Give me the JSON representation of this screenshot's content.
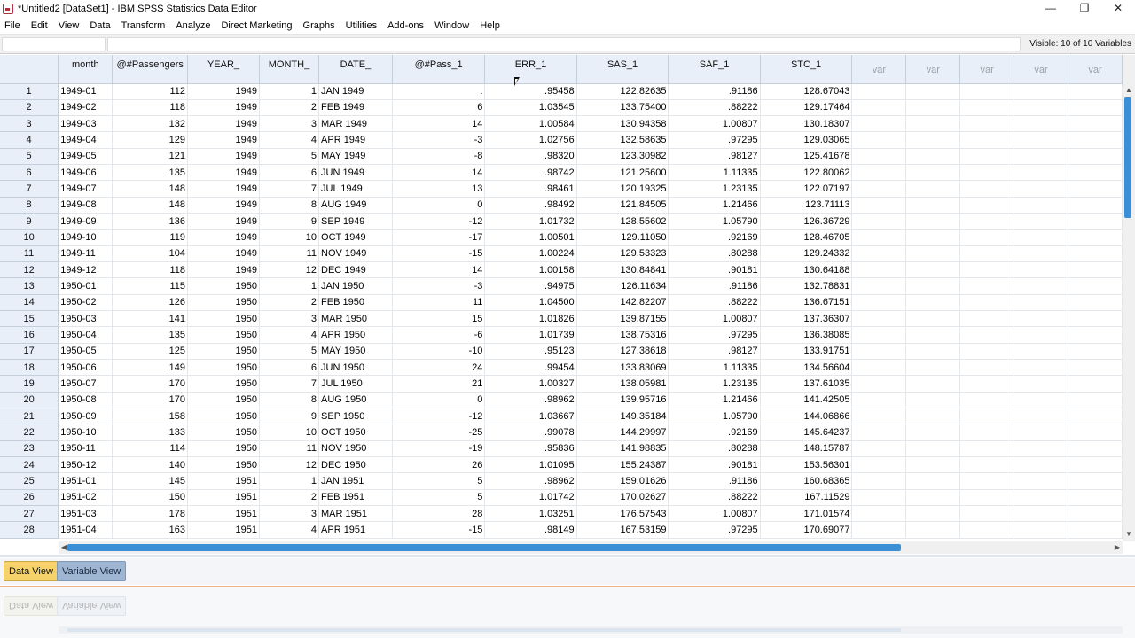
{
  "window": {
    "title": "*Untitled2 [DataSet1] - IBM SPSS Statistics Data Editor",
    "controls": {
      "minimize": "—",
      "restore": "❐",
      "close": "✕"
    }
  },
  "menu": [
    "File",
    "Edit",
    "View",
    "Data",
    "Transform",
    "Analyze",
    "Direct Marketing",
    "Graphs",
    "Utilities",
    "Add-ons",
    "Window",
    "Help"
  ],
  "cellbar": {
    "reference": "",
    "content": "",
    "visible": "Visible: 10 of 10 Variables"
  },
  "columns": [
    "month",
    "@#Passengers",
    "YEAR_",
    "MONTH_",
    "DATE_",
    "@#Pass_1",
    "ERR_1",
    "SAS_1",
    "SAF_1",
    "STC_1",
    "var",
    "var",
    "var",
    "var",
    "var"
  ],
  "rows": [
    [
      "1949-01",
      "112",
      "1949",
      "1",
      "JAN 1949",
      ".",
      ".95458",
      "122.82635",
      ".91186",
      "128.67043"
    ],
    [
      "1949-02",
      "118",
      "1949",
      "2",
      "FEB 1949",
      "6",
      "1.03545",
      "133.75400",
      ".88222",
      "129.17464"
    ],
    [
      "1949-03",
      "132",
      "1949",
      "3",
      "MAR 1949",
      "14",
      "1.00584",
      "130.94358",
      "1.00807",
      "130.18307"
    ],
    [
      "1949-04",
      "129",
      "1949",
      "4",
      "APR 1949",
      "-3",
      "1.02756",
      "132.58635",
      ".97295",
      "129.03065"
    ],
    [
      "1949-05",
      "121",
      "1949",
      "5",
      "MAY 1949",
      "-8",
      ".98320",
      "123.30982",
      ".98127",
      "125.41678"
    ],
    [
      "1949-06",
      "135",
      "1949",
      "6",
      "JUN 1949",
      "14",
      ".98742",
      "121.25600",
      "1.11335",
      "122.80062"
    ],
    [
      "1949-07",
      "148",
      "1949",
      "7",
      "JUL 1949",
      "13",
      ".98461",
      "120.19325",
      "1.23135",
      "122.07197"
    ],
    [
      "1949-08",
      "148",
      "1949",
      "8",
      "AUG 1949",
      "0",
      ".98492",
      "121.84505",
      "1.21466",
      "123.71113"
    ],
    [
      "1949-09",
      "136",
      "1949",
      "9",
      "SEP 1949",
      "-12",
      "1.01732",
      "128.55602",
      "1.05790",
      "126.36729"
    ],
    [
      "1949-10",
      "119",
      "1949",
      "10",
      "OCT 1949",
      "-17",
      "1.00501",
      "129.11050",
      ".92169",
      "128.46705"
    ],
    [
      "1949-11",
      "104",
      "1949",
      "11",
      "NOV 1949",
      "-15",
      "1.00224",
      "129.53323",
      ".80288",
      "129.24332"
    ],
    [
      "1949-12",
      "118",
      "1949",
      "12",
      "DEC 1949",
      "14",
      "1.00158",
      "130.84841",
      ".90181",
      "130.64188"
    ],
    [
      "1950-01",
      "115",
      "1950",
      "1",
      "JAN 1950",
      "-3",
      ".94975",
      "126.11634",
      ".91186",
      "132.78831"
    ],
    [
      "1950-02",
      "126",
      "1950",
      "2",
      "FEB 1950",
      "11",
      "1.04500",
      "142.82207",
      ".88222",
      "136.67151"
    ],
    [
      "1950-03",
      "141",
      "1950",
      "3",
      "MAR 1950",
      "15",
      "1.01826",
      "139.87155",
      "1.00807",
      "137.36307"
    ],
    [
      "1950-04",
      "135",
      "1950",
      "4",
      "APR 1950",
      "-6",
      "1.01739",
      "138.75316",
      ".97295",
      "136.38085"
    ],
    [
      "1950-05",
      "125",
      "1950",
      "5",
      "MAY 1950",
      "-10",
      ".95123",
      "127.38618",
      ".98127",
      "133.91751"
    ],
    [
      "1950-06",
      "149",
      "1950",
      "6",
      "JUN 1950",
      "24",
      ".99454",
      "133.83069",
      "1.11335",
      "134.56604"
    ],
    [
      "1950-07",
      "170",
      "1950",
      "7",
      "JUL 1950",
      "21",
      "1.00327",
      "138.05981",
      "1.23135",
      "137.61035"
    ],
    [
      "1950-08",
      "170",
      "1950",
      "8",
      "AUG 1950",
      "0",
      ".98962",
      "139.95716",
      "1.21466",
      "141.42505"
    ],
    [
      "1950-09",
      "158",
      "1950",
      "9",
      "SEP 1950",
      "-12",
      "1.03667",
      "149.35184",
      "1.05790",
      "144.06866"
    ],
    [
      "1950-10",
      "133",
      "1950",
      "10",
      "OCT 1950",
      "-25",
      ".99078",
      "144.29997",
      ".92169",
      "145.64237"
    ],
    [
      "1950-11",
      "114",
      "1950",
      "11",
      "NOV 1950",
      "-19",
      ".95836",
      "141.98835",
      ".80288",
      "148.15787"
    ],
    [
      "1950-12",
      "140",
      "1950",
      "12",
      "DEC 1950",
      "26",
      "1.01095",
      "155.24387",
      ".90181",
      "153.56301"
    ],
    [
      "1951-01",
      "145",
      "1951",
      "1",
      "JAN 1951",
      "5",
      ".98962",
      "159.01626",
      ".91186",
      "160.68365"
    ],
    [
      "1951-02",
      "150",
      "1951",
      "2",
      "FEB 1951",
      "5",
      "1.01742",
      "170.02627",
      ".88222",
      "167.11529"
    ],
    [
      "1951-03",
      "178",
      "1951",
      "3",
      "MAR 1951",
      "28",
      "1.03251",
      "176.57543",
      "1.00807",
      "171.01574"
    ],
    [
      "1951-04",
      "163",
      "1951",
      "4",
      "APR 1951",
      "-15",
      ".98149",
      "167.53159",
      ".97295",
      "170.69077"
    ]
  ],
  "tabs": {
    "data_view": "Data View",
    "variable_view": "Variable View"
  },
  "colors": {
    "header_bg": "#e8eff8",
    "active_tab": "#f5d36a",
    "inactive_tab": "#9fb6d2",
    "scroll_thumb": "#3a8fd6"
  }
}
